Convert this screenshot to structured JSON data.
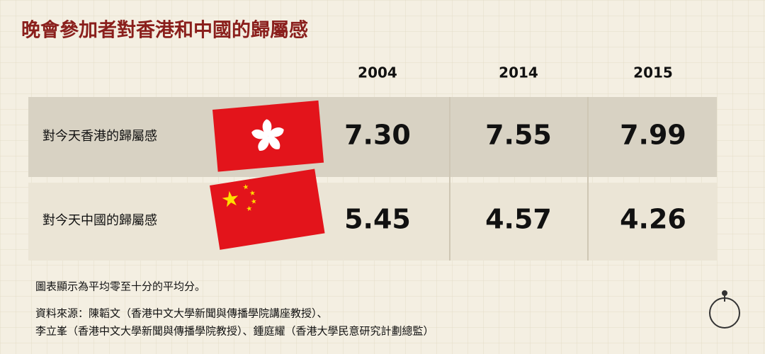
{
  "header": {
    "title": "晚會參加者對香港和中國的歸屬感"
  },
  "table": {
    "columns": [
      "2004",
      "2014",
      "2015"
    ],
    "rows": [
      {
        "label": "對今天香港的歸屬感",
        "values": [
          "7.30",
          "7.55",
          "7.99"
        ]
      },
      {
        "label": "對今天中國的歸屬感",
        "values": [
          "5.45",
          "4.57",
          "4.26"
        ]
      }
    ]
  },
  "footer": {
    "note": "圖表顯示為平均零至十分的平均分。",
    "source": [
      "資料來源：陳韜文（香港中文大學新聞與傳播學院講座教授）、",
      "李立峯（香港中文大學新聞與傳播學院教授）、鍾庭耀（香港大學民意研究計劃總監）"
    ]
  }
}
